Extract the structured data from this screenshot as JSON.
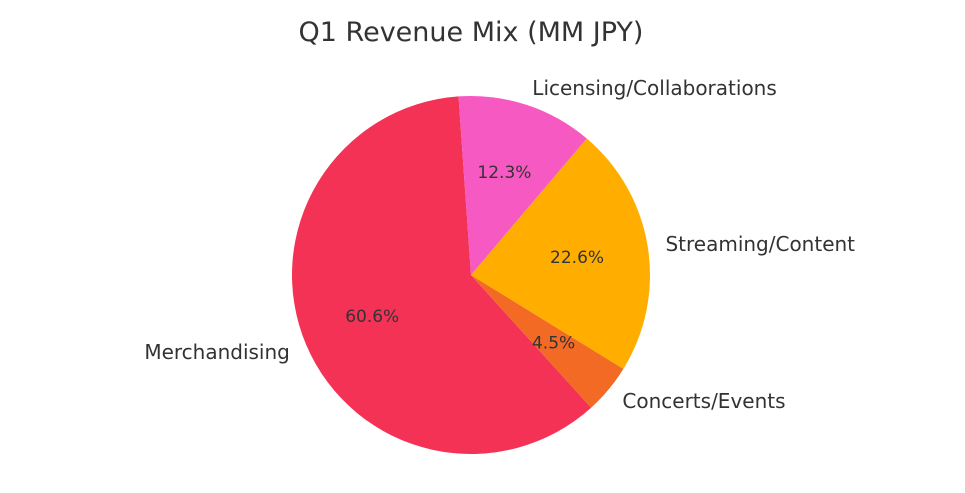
{
  "chart_data": {
    "type": "pie",
    "title": "Q1 Revenue Mix (MM JPY)",
    "slices": [
      {
        "label": "Merchandising",
        "percent": 60.6,
        "percent_label": "60.6%",
        "color": "#F43256"
      },
      {
        "label": "Concerts/Events",
        "percent": 4.5,
        "percent_label": "4.5%",
        "color": "#F26A24"
      },
      {
        "label": "Streaming/Content",
        "percent": 22.6,
        "percent_label": "22.6%",
        "color": "#FFAE00"
      },
      {
        "label": "Licensing/Collaborations",
        "percent": 12.3,
        "percent_label": "12.3%",
        "color": "#F759C3"
      }
    ],
    "legend": "none"
  }
}
